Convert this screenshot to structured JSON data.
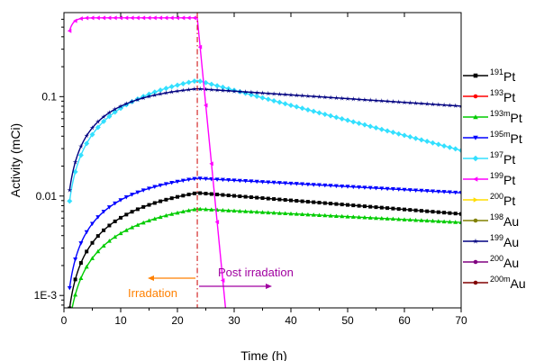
{
  "chart_data": {
    "type": "line",
    "xlabel": "Time (h)",
    "ylabel": "Activity (mCi)",
    "xlim": [
      0,
      70
    ],
    "ylim": [
      0.00075,
      0.7
    ],
    "yscale": "log",
    "grid": false,
    "xticks": [
      0,
      10,
      20,
      30,
      40,
      50,
      60,
      70
    ],
    "xtick_labels": [
      "0",
      "10",
      "20",
      "30",
      "40",
      "50",
      "60",
      "70"
    ],
    "yticks": [
      0.001,
      0.01,
      0.1
    ],
    "ytick_labels": [
      "1E-3",
      "0.01",
      "0.1"
    ],
    "legend_position": "right",
    "legend": [
      {
        "mass": "191",
        "element": "Pt",
        "color": "#000000",
        "marker": "square"
      },
      {
        "mass": "193",
        "element": "Pt",
        "color": "#ff0000",
        "marker": "circle"
      },
      {
        "mass": "193m",
        "element": "Pt",
        "color": "#00cc00",
        "marker": "triangle-up"
      },
      {
        "mass": "195m",
        "element": "Pt",
        "color": "#0000ff",
        "marker": "triangle-down"
      },
      {
        "mass": "197",
        "element": "Pt",
        "color": "#33e0ff",
        "marker": "diamond"
      },
      {
        "mass": "199",
        "element": "Pt",
        "color": "#ff00ff",
        "marker": "triangle-left"
      },
      {
        "mass": "200",
        "element": "Pt",
        "color": "#ffdd00",
        "marker": "triangle-right"
      },
      {
        "mass": "198",
        "element": "Au",
        "color": "#808000",
        "marker": "circle"
      },
      {
        "mass": "199",
        "element": "Au",
        "color": "#000080",
        "marker": "star"
      },
      {
        "mass": "200",
        "element": "Au",
        "color": "#800080",
        "marker": "circle"
      },
      {
        "mass": "200m",
        "element": "Au",
        "color": "#800000",
        "marker": "circle"
      }
    ],
    "irradiation_end": 23.5,
    "annotations": {
      "irradiation_label": "Irradation",
      "irradiation_color": "#ff8000",
      "post_label": "Post irradation",
      "post_color": "#a000a0",
      "divider_color": "#cc0000"
    },
    "series": [
      {
        "legend_index": 4,
        "color": "#33e0ff",
        "marker": "diamond",
        "t_irr": 23.5,
        "t_end": 70,
        "a_sat": 0.26,
        "half_life": 19.9,
        "t_start": 1
      },
      {
        "legend_index": 8,
        "color": "#000080",
        "marker": "star",
        "t_irr": 23.5,
        "t_end": 70,
        "a_sat": 0.138,
        "half_life": 8.0,
        "decay_half_life": 80,
        "t_start": 1
      },
      {
        "legend_index": 3,
        "color": "#0000ff",
        "marker": "triangle-down",
        "t_irr": 23.5,
        "t_end": 70,
        "a_sat": 0.0195,
        "half_life": 11.0,
        "decay_half_life": 96,
        "t_start": 1
      },
      {
        "legend_index": 0,
        "color": "#000000",
        "marker": "square",
        "t_irr": 23.5,
        "t_end": 70,
        "a_sat": 0.016,
        "half_life": 14.6,
        "decay_half_life": 66,
        "t_start": 1
      },
      {
        "legend_index": 2,
        "color": "#00cc00",
        "marker": "triangle-up",
        "t_irr": 23.5,
        "t_end": 70,
        "a_sat": 0.0108,
        "half_life": 14.0,
        "decay_half_life": 103,
        "t_start": 1
      },
      {
        "legend_index": 5,
        "color": "#ff00ff",
        "marker": "triangle-left",
        "t_irr": 23.5,
        "t_end": 29.2,
        "a_sat": 0.62,
        "half_life": 0.513,
        "t_start": 1
      }
    ]
  }
}
